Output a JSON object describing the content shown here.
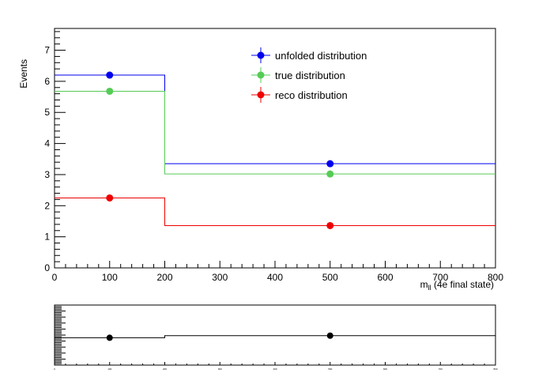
{
  "chart_data": [
    {
      "type": "line",
      "title": "",
      "xlabel": "m_ll (4e final state)",
      "xlabel_main": "m",
      "xlabel_sub": "ll",
      "xlabel_rest": " (4e final state)",
      "ylabel": "Events",
      "xlim": [
        0,
        800
      ],
      "ylim": [
        0,
        7.7
      ],
      "x_ticks": [
        0,
        100,
        200,
        300,
        400,
        500,
        600,
        700,
        800
      ],
      "y_ticks": [
        0,
        1,
        2,
        3,
        4,
        5,
        6,
        7
      ],
      "grid": false,
      "legend_position": "top-center",
      "bin_edges": [
        0,
        200,
        800
      ],
      "bin_centers": [
        100,
        500
      ],
      "series": [
        {
          "name": "unfolded distribution",
          "color": "#0000ee",
          "values": [
            6.2,
            3.35
          ]
        },
        {
          "name": "true distribution",
          "color": "#55cc55",
          "values": [
            5.68,
            3.02
          ]
        },
        {
          "name": "reco distribution",
          "color": "#ee0000",
          "values": [
            2.25,
            1.36
          ]
        }
      ]
    },
    {
      "type": "line",
      "title": "",
      "xlim": [
        0,
        800
      ],
      "ylim": [
        0,
        2
      ],
      "x_ticks": [
        0,
        100,
        200,
        300,
        400,
        500,
        600,
        700,
        800
      ],
      "bin_edges": [
        0,
        200,
        800
      ],
      "bin_centers": [
        100,
        500
      ],
      "series": [
        {
          "color": "#000000",
          "values": [
            0.91,
            0.98
          ]
        }
      ]
    }
  ]
}
